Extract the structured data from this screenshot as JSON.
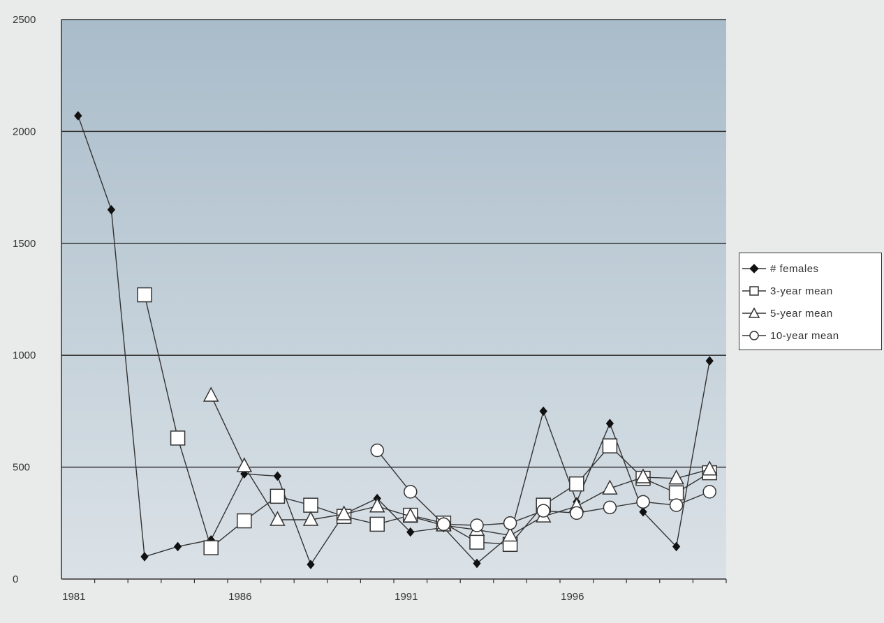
{
  "chart_data": {
    "type": "line",
    "title": "",
    "xlabel": "",
    "ylabel": "",
    "xlim": [
      1980.5,
      2000.5
    ],
    "ylim": [
      0,
      2500
    ],
    "x_ticks": [
      1981,
      1986,
      1991,
      1996
    ],
    "y_ticks": [
      0,
      500,
      1000,
      1500,
      2000,
      2500
    ],
    "grid": "horizontal",
    "legend": "right",
    "series": [
      {
        "name": "# females",
        "marker": "diamond",
        "points": [
          [
            1981,
            2070
          ],
          [
            1982,
            1650
          ],
          [
            1983,
            100
          ],
          [
            1984,
            145
          ],
          [
            1985,
            175
          ],
          [
            1986,
            470
          ],
          [
            1987,
            460
          ],
          [
            1988,
            65
          ],
          [
            1989,
            290
          ],
          [
            1990,
            360
          ],
          [
            1991,
            210
          ],
          [
            1992,
            230
          ],
          [
            1993,
            70
          ],
          [
            1994,
            195
          ],
          [
            1995,
            750
          ],
          [
            1996,
            345
          ],
          [
            1997,
            695
          ],
          [
            1998,
            300
          ],
          [
            1999,
            145
          ],
          [
            2000,
            975
          ]
        ]
      },
      {
        "name": "3-year mean",
        "marker": "square",
        "points": [
          [
            1983,
            1270
          ],
          [
            1984,
            630
          ],
          [
            1985,
            140
          ],
          [
            1986,
            260
          ],
          [
            1987,
            370
          ],
          [
            1988,
            330
          ],
          [
            1989,
            280
          ],
          [
            1990,
            245
          ],
          [
            1991,
            285
          ],
          [
            1992,
            250
          ],
          [
            1993,
            165
          ],
          [
            1994,
            155
          ],
          [
            1995,
            330
          ],
          [
            1996,
            425
          ],
          [
            1997,
            595
          ],
          [
            1998,
            450
          ],
          [
            1999,
            385
          ],
          [
            2000,
            475
          ]
        ]
      },
      {
        "name": "5-year mean",
        "marker": "triangle",
        "points": [
          [
            1985,
            820
          ],
          [
            1986,
            505
          ],
          [
            1987,
            265
          ],
          [
            1988,
            265
          ],
          [
            1989,
            290
          ],
          [
            1990,
            325
          ],
          [
            1991,
            280
          ],
          [
            1992,
            240
          ],
          [
            1993,
            220
          ],
          [
            1994,
            195
          ],
          [
            1995,
            280
          ],
          [
            1996,
            325
          ],
          [
            1997,
            405
          ],
          [
            1998,
            455
          ],
          [
            1999,
            450
          ],
          [
            2000,
            490
          ]
        ]
      },
      {
        "name": "10-year mean",
        "marker": "circle",
        "points": [
          [
            1990,
            575
          ],
          [
            1991,
            390
          ],
          [
            1992,
            245
          ],
          [
            1993,
            240
          ],
          [
            1994,
            250
          ],
          [
            1995,
            305
          ],
          [
            1996,
            295
          ],
          [
            1997,
            320
          ],
          [
            1998,
            345
          ],
          [
            1999,
            330
          ],
          [
            2000,
            390
          ]
        ]
      }
    ],
    "colors": {
      "plot_top": "#a9bcca",
      "plot_bottom": "#dbe2e7",
      "line": "#333333",
      "marker_fill": "#ffffff",
      "diamond_fill": "#111111"
    }
  }
}
